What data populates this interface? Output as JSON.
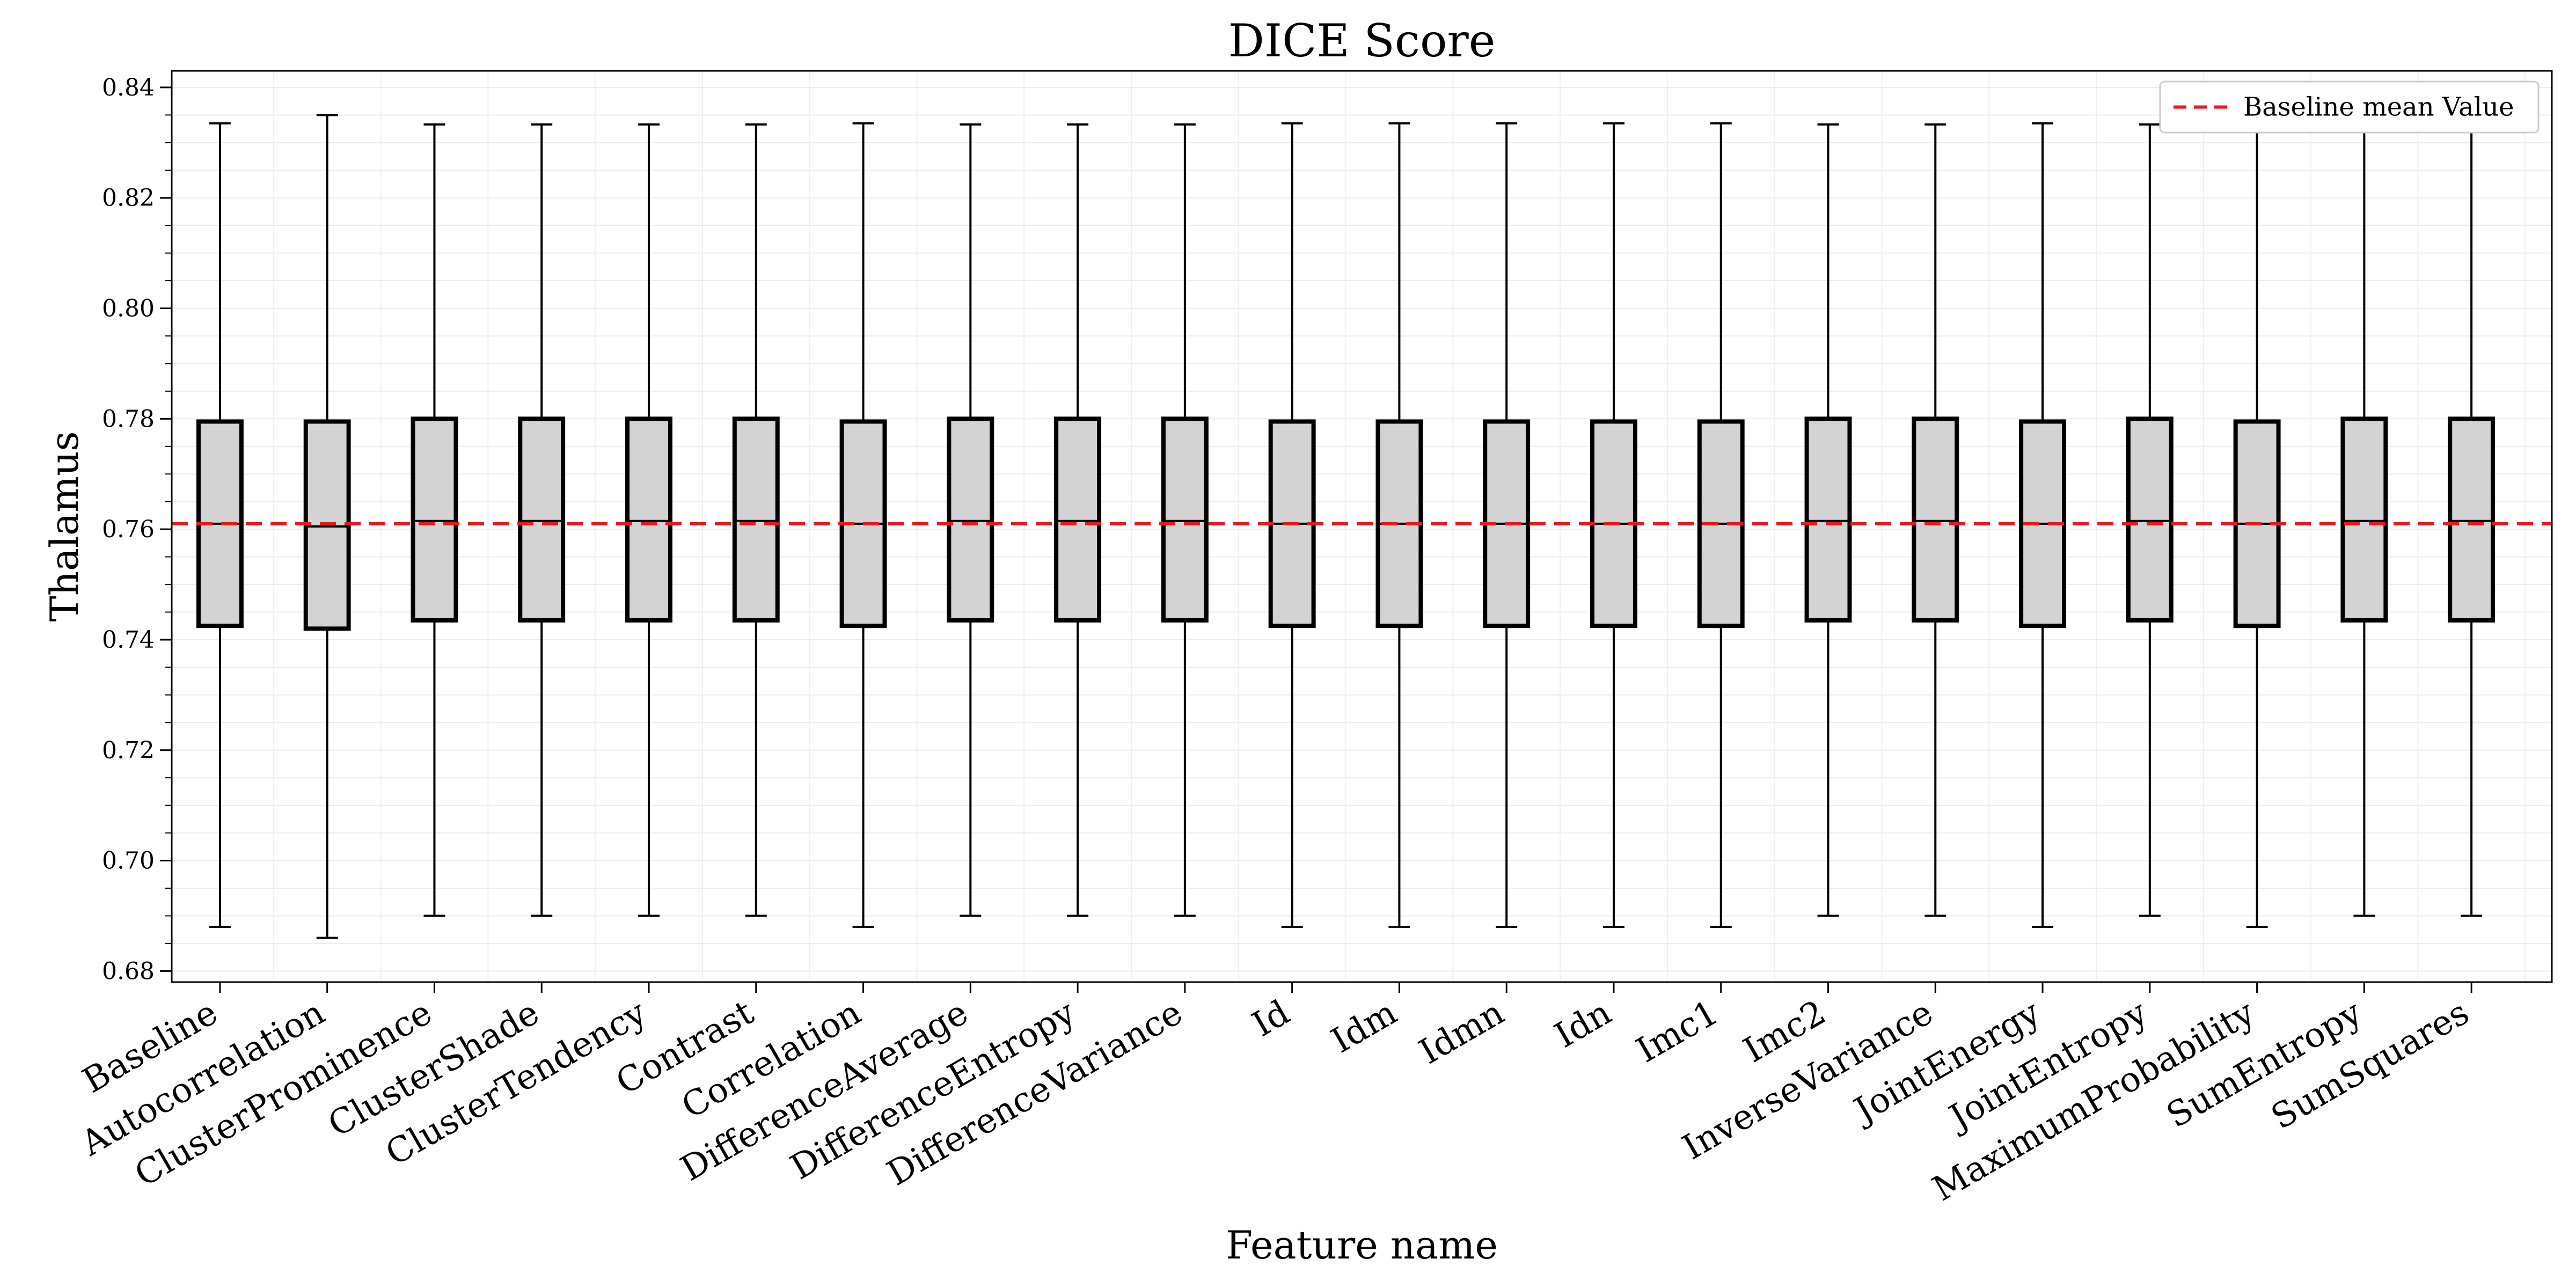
{
  "chart_data": {
    "type": "box",
    "title": "DICE Score",
    "xlabel": "Feature name",
    "ylabel": "Thalamus",
    "ylim": [
      0.678,
      0.843
    ],
    "yticks": [
      0.68,
      0.7,
      0.72,
      0.74,
      0.76,
      0.78,
      0.8,
      0.82,
      0.84
    ],
    "ytick_labels": [
      "0.68",
      "0.70",
      "0.72",
      "0.74",
      "0.76",
      "0.78",
      "0.80",
      "0.82",
      "0.84"
    ],
    "grid": true,
    "legend": {
      "placement": "top-right",
      "entries": [
        {
          "label": "Baseline mean Value",
          "color": "#e41a1c",
          "style": "dashed"
        }
      ]
    },
    "baseline_mean": 0.761,
    "box_fill": "#d3d3d3",
    "categories": [
      "Baseline",
      "Autocorrelation",
      "ClusterProminence",
      "ClusterShade",
      "ClusterTendency",
      "Contrast",
      "Correlation",
      "DifferenceAverage",
      "DifferenceEntropy",
      "DifferenceVariance",
      "Id",
      "Idm",
      "Idmn",
      "Idn",
      "Imc1",
      "Imc2",
      "InverseVariance",
      "JointEnergy",
      "JointEntropy",
      "MaximumProbability",
      "SumEntropy",
      "SumSquares"
    ],
    "boxes": [
      {
        "whislo": 0.688,
        "q1": 0.7425,
        "med": 0.761,
        "q3": 0.7795,
        "whishi": 0.8335
      },
      {
        "whislo": 0.686,
        "q1": 0.742,
        "med": 0.7605,
        "q3": 0.7795,
        "whishi": 0.835
      },
      {
        "whislo": 0.69,
        "q1": 0.7435,
        "med": 0.7615,
        "q3": 0.78,
        "whishi": 0.8333
      },
      {
        "whislo": 0.69,
        "q1": 0.7435,
        "med": 0.7615,
        "q3": 0.78,
        "whishi": 0.8333
      },
      {
        "whislo": 0.69,
        "q1": 0.7435,
        "med": 0.7615,
        "q3": 0.78,
        "whishi": 0.8333
      },
      {
        "whislo": 0.69,
        "q1": 0.7435,
        "med": 0.7615,
        "q3": 0.78,
        "whishi": 0.8333
      },
      {
        "whislo": 0.688,
        "q1": 0.7425,
        "med": 0.761,
        "q3": 0.7795,
        "whishi": 0.8335
      },
      {
        "whislo": 0.69,
        "q1": 0.7435,
        "med": 0.7615,
        "q3": 0.78,
        "whishi": 0.8333
      },
      {
        "whislo": 0.69,
        "q1": 0.7435,
        "med": 0.7615,
        "q3": 0.78,
        "whishi": 0.8333
      },
      {
        "whislo": 0.69,
        "q1": 0.7435,
        "med": 0.7615,
        "q3": 0.78,
        "whishi": 0.8333
      },
      {
        "whislo": 0.688,
        "q1": 0.7425,
        "med": 0.761,
        "q3": 0.7795,
        "whishi": 0.8335
      },
      {
        "whislo": 0.688,
        "q1": 0.7425,
        "med": 0.761,
        "q3": 0.7795,
        "whishi": 0.8335
      },
      {
        "whislo": 0.688,
        "q1": 0.7425,
        "med": 0.761,
        "q3": 0.7795,
        "whishi": 0.8335
      },
      {
        "whislo": 0.688,
        "q1": 0.7425,
        "med": 0.761,
        "q3": 0.7795,
        "whishi": 0.8335
      },
      {
        "whislo": 0.688,
        "q1": 0.7425,
        "med": 0.761,
        "q3": 0.7795,
        "whishi": 0.8335
      },
      {
        "whislo": 0.69,
        "q1": 0.7435,
        "med": 0.7615,
        "q3": 0.78,
        "whishi": 0.8333
      },
      {
        "whislo": 0.69,
        "q1": 0.7435,
        "med": 0.7615,
        "q3": 0.78,
        "whishi": 0.8333
      },
      {
        "whislo": 0.688,
        "q1": 0.7425,
        "med": 0.761,
        "q3": 0.7795,
        "whishi": 0.8335
      },
      {
        "whislo": 0.69,
        "q1": 0.7435,
        "med": 0.7615,
        "q3": 0.78,
        "whishi": 0.8333
      },
      {
        "whislo": 0.688,
        "q1": 0.7425,
        "med": 0.761,
        "q3": 0.7795,
        "whishi": 0.8335
      },
      {
        "whislo": 0.69,
        "q1": 0.7435,
        "med": 0.7615,
        "q3": 0.78,
        "whishi": 0.8333
      },
      {
        "whislo": 0.69,
        "q1": 0.7435,
        "med": 0.7615,
        "q3": 0.78,
        "whishi": 0.8333
      }
    ]
  }
}
